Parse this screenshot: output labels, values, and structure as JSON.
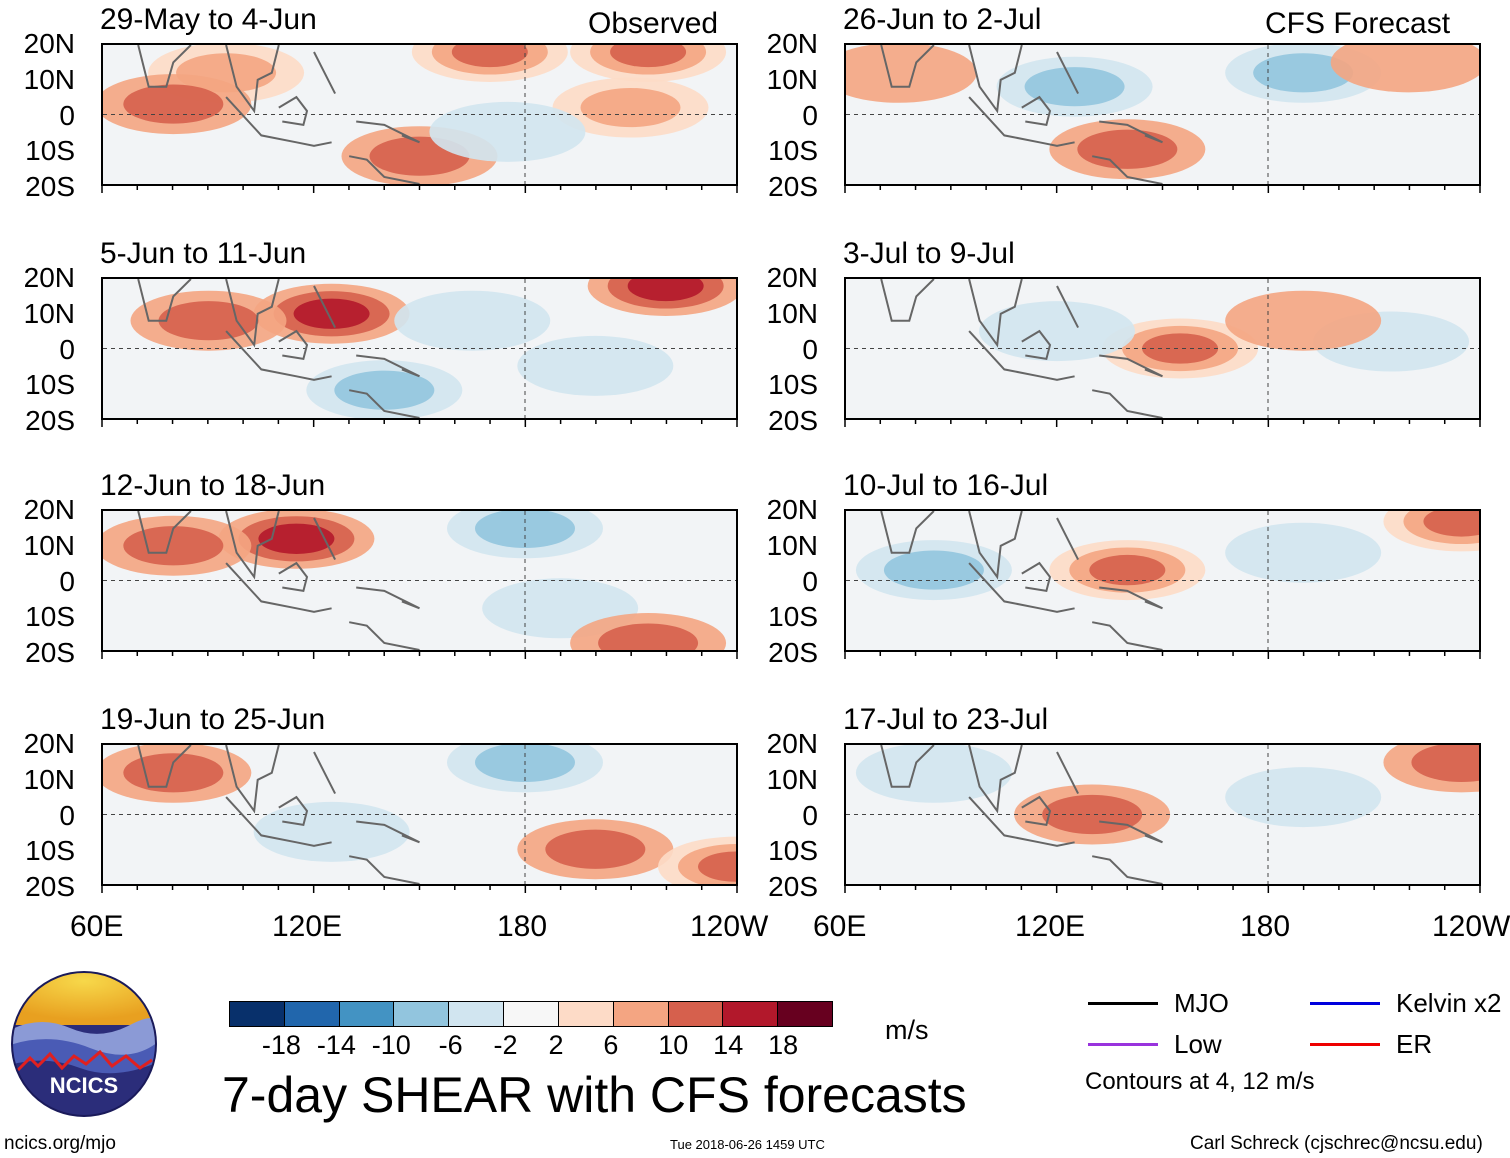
{
  "title": "7-day SHEAR with CFS forecasts",
  "units": "m/s",
  "column_headers": {
    "left": "Observed",
    "right": "CFS Forecast"
  },
  "colorbar": {
    "colors": [
      "#08306b",
      "#2166ac",
      "#4393c3",
      "#92c5de",
      "#d1e5f0",
      "#f7f7f7",
      "#fddbc7",
      "#f4a582",
      "#d6604d",
      "#b2182b",
      "#67001f"
    ],
    "labels": [
      "-18",
      "-14",
      "-10",
      "-6",
      "-2",
      "2",
      "6",
      "10",
      "14",
      "18"
    ]
  },
  "legend": [
    {
      "label": "MJO",
      "color": "#000000"
    },
    {
      "label": "Kelvin x2",
      "color": "#0000dd"
    },
    {
      "label": "Low",
      "color": "#9933dd"
    },
    {
      "label": "ER",
      "color": "#ee0000"
    }
  ],
  "contour_note": "Contours at 4, 12 m/s",
  "footer": {
    "url": "ncics.org/mjo",
    "timestamp": "Tue 2018-06-26 1459 UTC",
    "author": "Carl Schreck (cjschrec@ncsu.edu)"
  },
  "logo_text": "NCICS",
  "axes": {
    "lat_labels": [
      "20N",
      "10N",
      "0",
      "10S",
      "20S"
    ],
    "lon_labels": [
      "60E",
      "120E",
      "180",
      "120W"
    ]
  },
  "chart_data": {
    "type": "heatmap",
    "variable": "7-day vertical wind shear anomaly",
    "units": "m/s",
    "xlim": [
      60,
      240
    ],
    "ylim": [
      -20,
      20
    ],
    "panels": [
      {
        "label": "29-May to 4-Jun",
        "kind": "observed",
        "anomaly_centers": [
          {
            "lon": 150,
            "lat": -12,
            "value": 10
          },
          {
            "lon": 95,
            "lat": 12,
            "value": 8
          },
          {
            "lon": 170,
            "lat": 18,
            "value": 12
          },
          {
            "lon": 215,
            "lat": 18,
            "value": 12
          },
          {
            "lon": 80,
            "lat": 3,
            "value": 10
          },
          {
            "lon": 210,
            "lat": 2,
            "value": 8
          },
          {
            "lon": 175,
            "lat": -5,
            "value": -4
          }
        ]
      },
      {
        "label": "26-Jun to 2-Jul",
        "kind": "forecast",
        "anomaly_centers": [
          {
            "lon": 140,
            "lat": -10,
            "value": 10
          },
          {
            "lon": 125,
            "lat": 8,
            "value": -8
          },
          {
            "lon": 190,
            "lat": 12,
            "value": -8
          },
          {
            "lon": 75,
            "lat": 12,
            "value": 6
          },
          {
            "lon": 220,
            "lat": 15,
            "value": 6
          }
        ]
      },
      {
        "label": "5-Jun to 11-Jun",
        "kind": "observed",
        "anomaly_centers": [
          {
            "lon": 125,
            "lat": 10,
            "value": 14
          },
          {
            "lon": 90,
            "lat": 8,
            "value": 10
          },
          {
            "lon": 220,
            "lat": 18,
            "value": 14
          },
          {
            "lon": 165,
            "lat": 8,
            "value": -6
          },
          {
            "lon": 140,
            "lat": -12,
            "value": -8
          },
          {
            "lon": 200,
            "lat": -5,
            "value": -4
          }
        ]
      },
      {
        "label": "3-Jul to 9-Jul",
        "kind": "forecast",
        "anomaly_centers": [
          {
            "lon": 155,
            "lat": 0,
            "value": 12
          },
          {
            "lon": 120,
            "lat": 5,
            "value": -6
          },
          {
            "lon": 215,
            "lat": 2,
            "value": -6
          },
          {
            "lon": 190,
            "lat": 8,
            "value": 6
          }
        ]
      },
      {
        "label": "12-Jun to 18-Jun",
        "kind": "observed",
        "anomaly_centers": [
          {
            "lon": 115,
            "lat": 12,
            "value": 14
          },
          {
            "lon": 80,
            "lat": 10,
            "value": 10
          },
          {
            "lon": 180,
            "lat": 15,
            "value": -10
          },
          {
            "lon": 190,
            "lat": -8,
            "value": -6
          },
          {
            "lon": 215,
            "lat": -18,
            "value": 10
          }
        ]
      },
      {
        "label": "10-Jul to 16-Jul",
        "kind": "forecast",
        "anomaly_centers": [
          {
            "lon": 140,
            "lat": 3,
            "value": 12
          },
          {
            "lon": 85,
            "lat": 3,
            "value": -8
          },
          {
            "lon": 235,
            "lat": 17,
            "value": 12
          },
          {
            "lon": 190,
            "lat": 8,
            "value": -4
          }
        ]
      },
      {
        "label": "19-Jun to 25-Jun",
        "kind": "observed",
        "anomaly_centers": [
          {
            "lon": 80,
            "lat": 12,
            "value": 10
          },
          {
            "lon": 180,
            "lat": 15,
            "value": -10
          },
          {
            "lon": 200,
            "lat": -10,
            "value": 10
          },
          {
            "lon": 240,
            "lat": -15,
            "value": 12
          },
          {
            "lon": 125,
            "lat": -5,
            "value": -6
          }
        ]
      },
      {
        "label": "17-Jul to 23-Jul",
        "kind": "forecast",
        "anomaly_centers": [
          {
            "lon": 130,
            "lat": 0,
            "value": 10
          },
          {
            "lon": 85,
            "lat": 12,
            "value": -6
          },
          {
            "lon": 235,
            "lat": 15,
            "value": 10
          },
          {
            "lon": 190,
            "lat": 5,
            "value": -4
          }
        ]
      }
    ]
  }
}
